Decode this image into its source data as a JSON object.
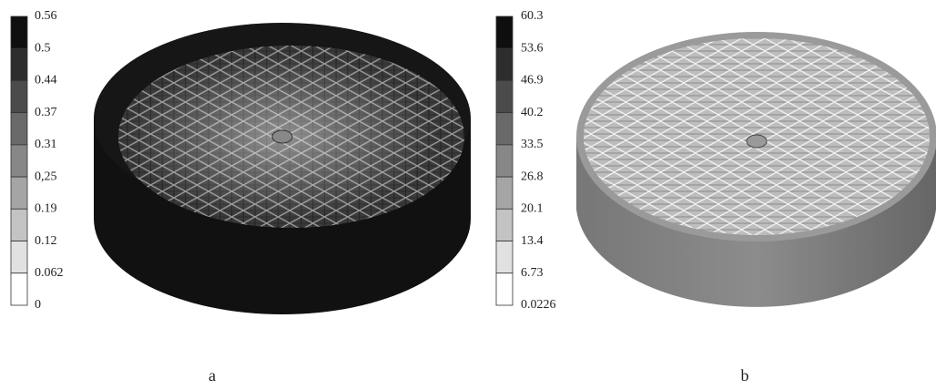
{
  "panels": [
    {
      "legend": {
        "labels": [
          "0.56",
          "0.5",
          "0.44",
          "0.37",
          "0.31",
          "0,25",
          "0.19",
          "0.12",
          "0.062",
          "0"
        ]
      },
      "caption": "a"
    },
    {
      "legend": {
        "labels": [
          "60.3",
          "53.6",
          "46.9",
          "40.2",
          "33.5",
          "26.8",
          "20.1",
          "13.4",
          "6.73",
          "0.0226"
        ]
      },
      "caption": "b"
    }
  ]
}
